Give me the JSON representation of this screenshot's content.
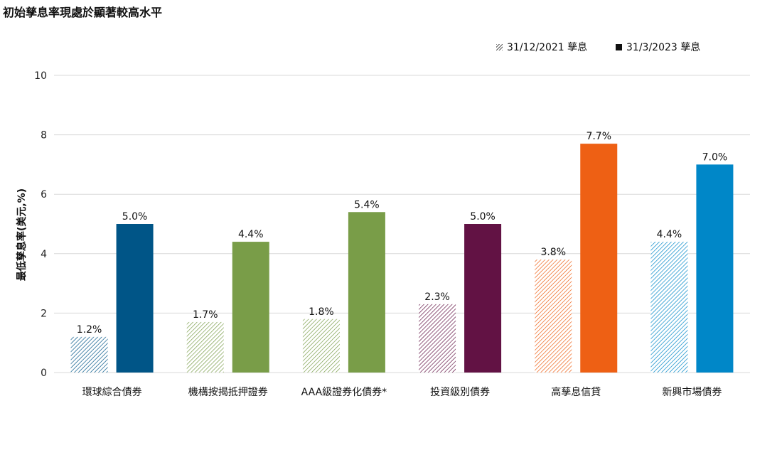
{
  "title": "初始孳息率現處於顯著較高水平",
  "legend": {
    "series_a": "31/12/2021 孳息",
    "series_b": "31/3/2023 孳息"
  },
  "colors": {
    "grid": "#d9d9d9",
    "axis_text": "#222222",
    "categories": [
      "#005587",
      "#799d48",
      "#799d48",
      "#621244",
      "#ee6014",
      "#0087c8"
    ]
  },
  "chart_data": {
    "type": "bar",
    "title": "初始孳息率現處於顯著較高水平",
    "xlabel": "",
    "ylabel": "最低孳息率(美元,%)",
    "ylim": [
      0,
      10
    ],
    "yticks": [
      0,
      2,
      4,
      6,
      8,
      10
    ],
    "grid": true,
    "legend_position": "top-right",
    "categories": [
      "環球綜合債券",
      "機構按揭抵押證券",
      "AAA級證券化債券*",
      "投資級別債券",
      "高孳息信貸",
      "新興市場債券"
    ],
    "series": [
      {
        "name": "31/12/2021 孳息",
        "style": "hatched",
        "values": [
          1.2,
          1.7,
          1.8,
          2.3,
          3.8,
          4.4
        ],
        "labels": [
          "1.2%",
          "1.7%",
          "1.8%",
          "2.3%",
          "3.8%",
          "4.4%"
        ]
      },
      {
        "name": "31/3/2023 孳息",
        "style": "solid",
        "values": [
          5.0,
          4.4,
          5.4,
          5.0,
          7.7,
          7.0
        ],
        "labels": [
          "5.0%",
          "4.4%",
          "5.4%",
          "5.0%",
          "7.7%",
          "7.0%"
        ]
      }
    ]
  }
}
